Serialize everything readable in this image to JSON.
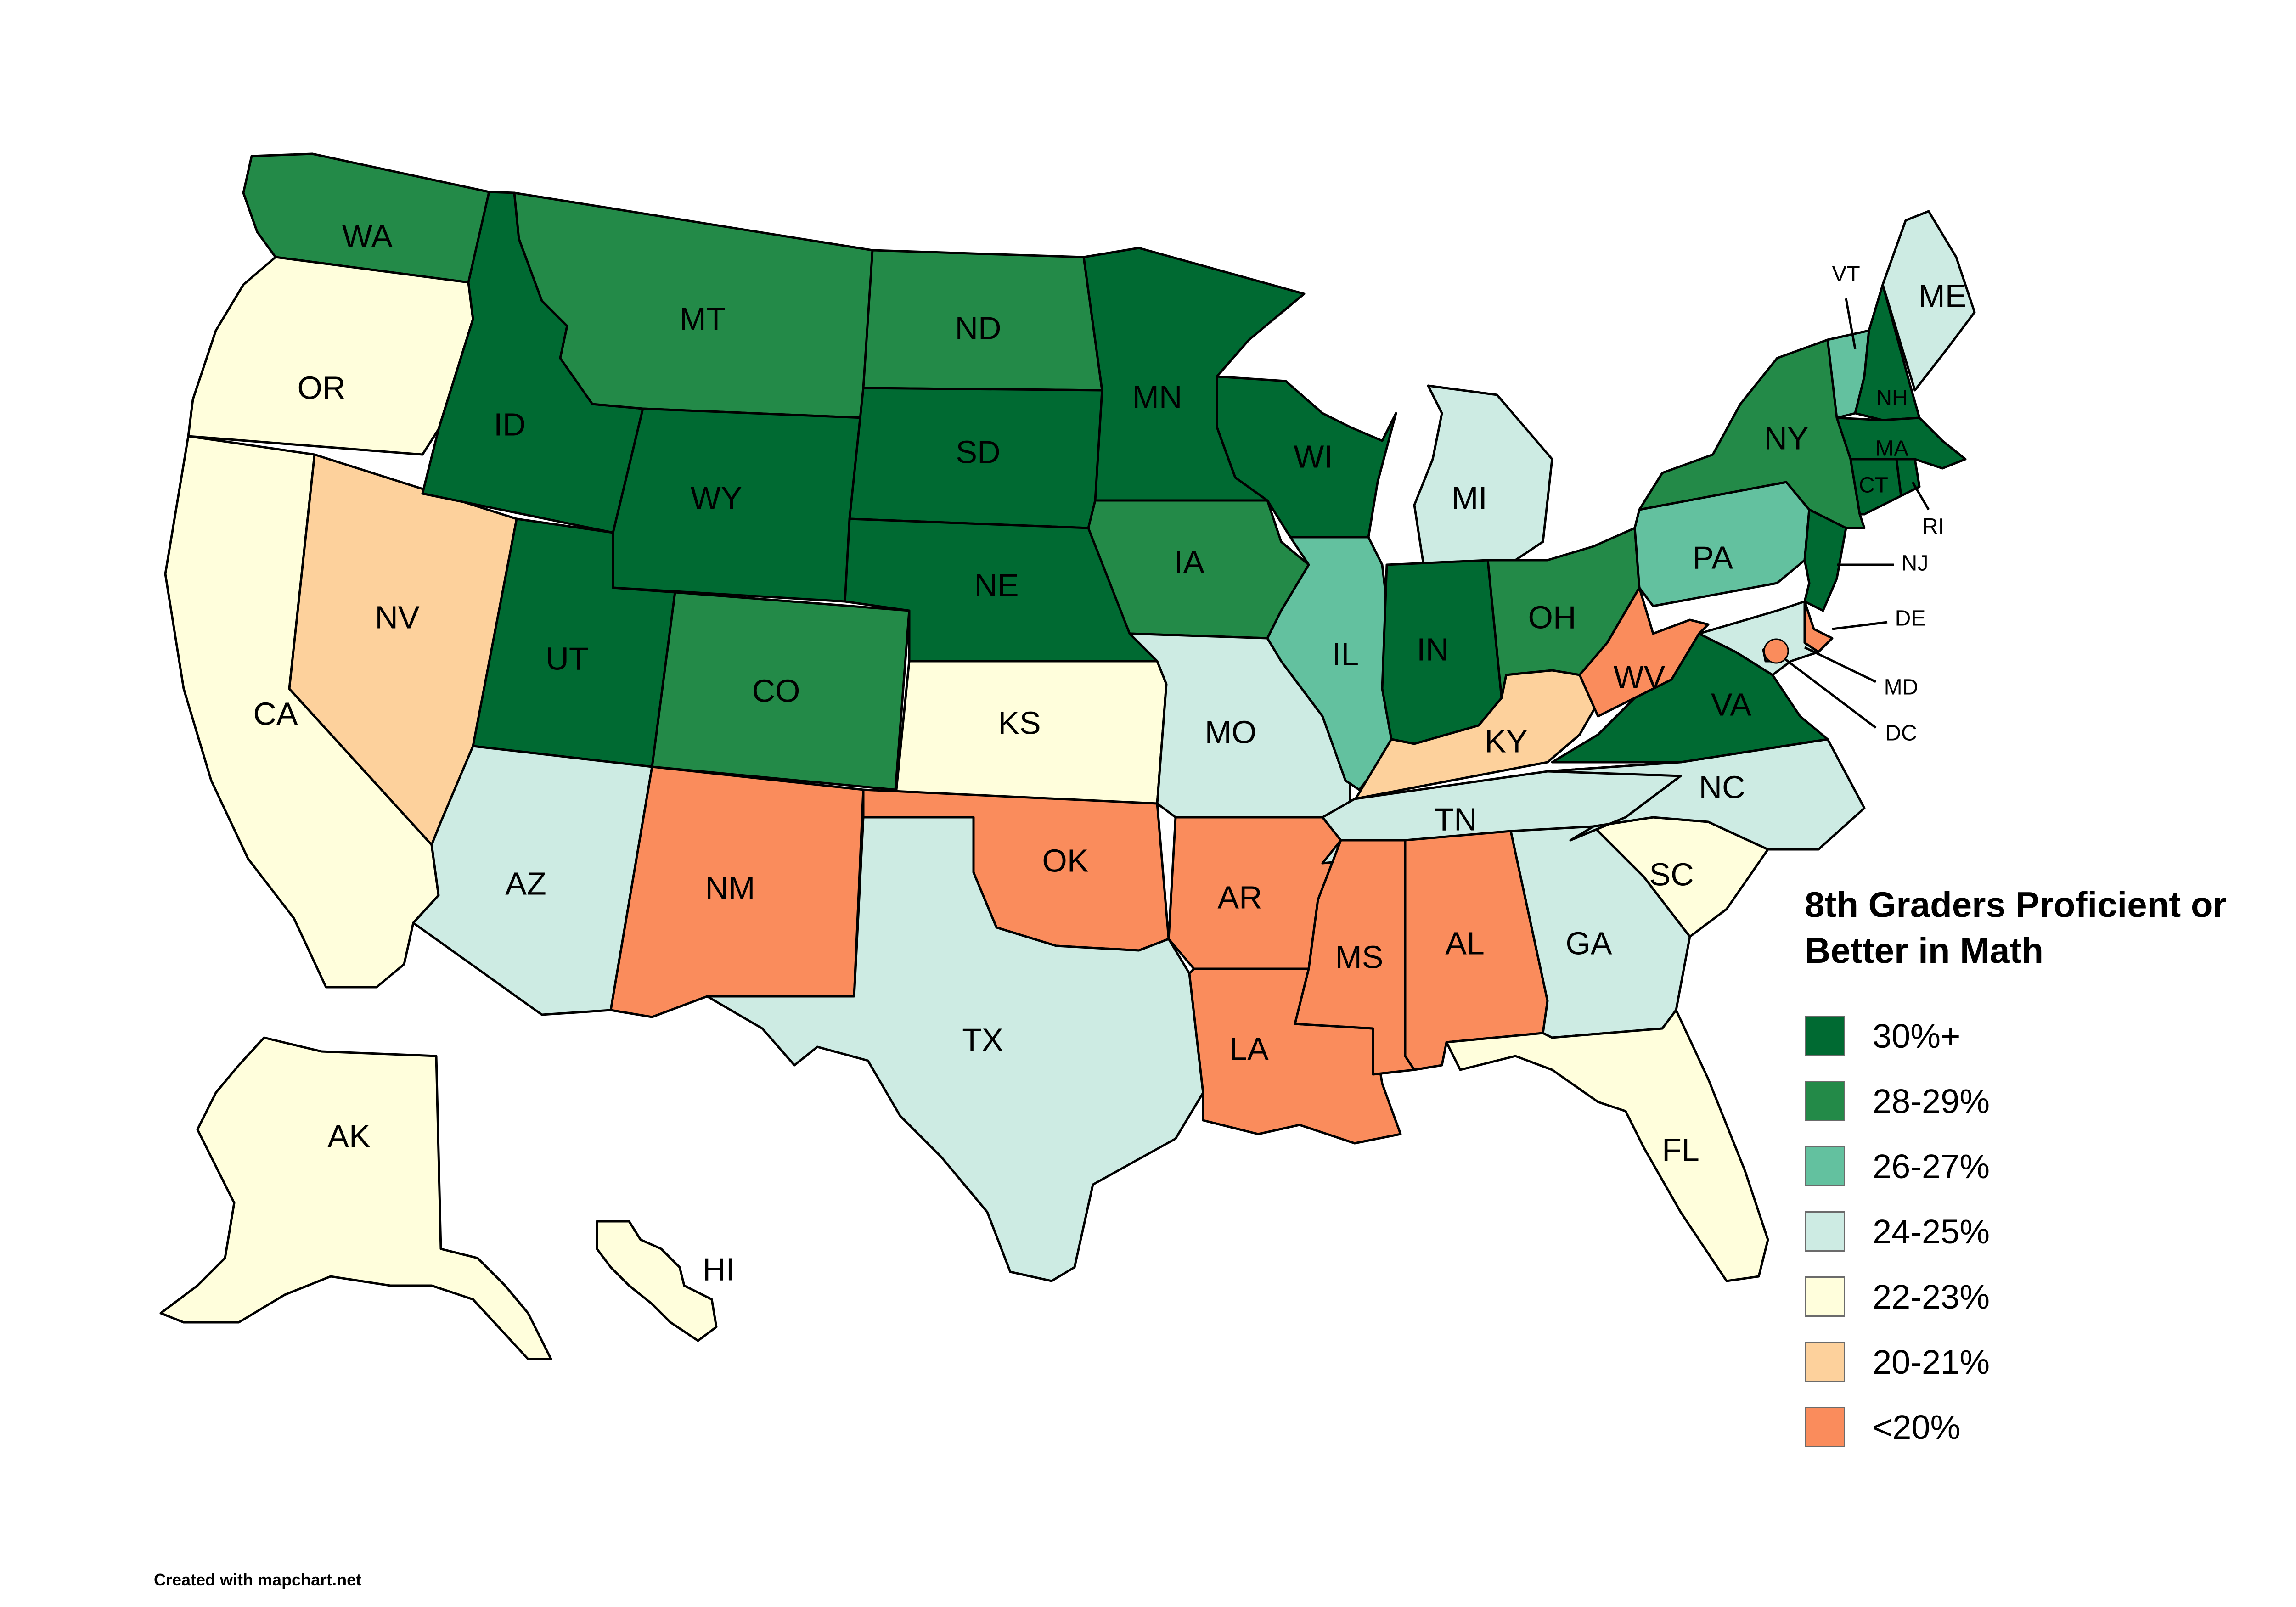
{
  "title": "8th Graders Proficient or Better in Math",
  "credit": "Created with mapchart.net",
  "legend": [
    {
      "label": "30%+",
      "color": "#006a32"
    },
    {
      "label": "28-29%",
      "color": "#238a48"
    },
    {
      "label": "26-27%",
      "color": "#63c19f"
    },
    {
      "label": "24-25%",
      "color": "#cdebe3"
    },
    {
      "label": "22-23%",
      "color": "#fffedc"
    },
    {
      "label": "20-21%",
      "color": "#fdd19c"
    },
    {
      "label": "<20%",
      "color": "#fa8c5c"
    }
  ],
  "states": [
    {
      "code": "WA",
      "tier": 1
    },
    {
      "code": "OR",
      "tier": 4
    },
    {
      "code": "CA",
      "tier": 4
    },
    {
      "code": "NV",
      "tier": 5
    },
    {
      "code": "ID",
      "tier": 0
    },
    {
      "code": "MT",
      "tier": 1
    },
    {
      "code": "WY",
      "tier": 0
    },
    {
      "code": "UT",
      "tier": 0
    },
    {
      "code": "CO",
      "tier": 1
    },
    {
      "code": "AZ",
      "tier": 3
    },
    {
      "code": "NM",
      "tier": 6
    },
    {
      "code": "ND",
      "tier": 1
    },
    {
      "code": "SD",
      "tier": 0
    },
    {
      "code": "NE",
      "tier": 0
    },
    {
      "code": "KS",
      "tier": 4
    },
    {
      "code": "OK",
      "tier": 6
    },
    {
      "code": "TX",
      "tier": 3
    },
    {
      "code": "MN",
      "tier": 0
    },
    {
      "code": "IA",
      "tier": 1
    },
    {
      "code": "MO",
      "tier": 3
    },
    {
      "code": "AR",
      "tier": 6
    },
    {
      "code": "LA",
      "tier": 6
    },
    {
      "code": "WI",
      "tier": 0
    },
    {
      "code": "IL",
      "tier": 2
    },
    {
      "code": "MI",
      "tier": 3
    },
    {
      "code": "IN",
      "tier": 0
    },
    {
      "code": "OH",
      "tier": 1
    },
    {
      "code": "KY",
      "tier": 5
    },
    {
      "code": "TN",
      "tier": 3
    },
    {
      "code": "MS",
      "tier": 6
    },
    {
      "code": "AL",
      "tier": 6
    },
    {
      "code": "GA",
      "tier": 3
    },
    {
      "code": "FL",
      "tier": 4
    },
    {
      "code": "SC",
      "tier": 4
    },
    {
      "code": "NC",
      "tier": 3
    },
    {
      "code": "VA",
      "tier": 0
    },
    {
      "code": "WV",
      "tier": 6
    },
    {
      "code": "PA",
      "tier": 2
    },
    {
      "code": "NY",
      "tier": 1
    },
    {
      "code": "VT",
      "tier": 2
    },
    {
      "code": "NH",
      "tier": 0
    },
    {
      "code": "ME",
      "tier": 3
    },
    {
      "code": "MA",
      "tier": 0
    },
    {
      "code": "CT",
      "tier": 0
    },
    {
      "code": "RI",
      "tier": 0
    },
    {
      "code": "NJ",
      "tier": 0
    },
    {
      "code": "DE",
      "tier": 6
    },
    {
      "code": "MD",
      "tier": 3
    },
    {
      "code": "DC",
      "tier": 6
    },
    {
      "code": "AK",
      "tier": 4
    },
    {
      "code": "HI",
      "tier": 4
    }
  ]
}
